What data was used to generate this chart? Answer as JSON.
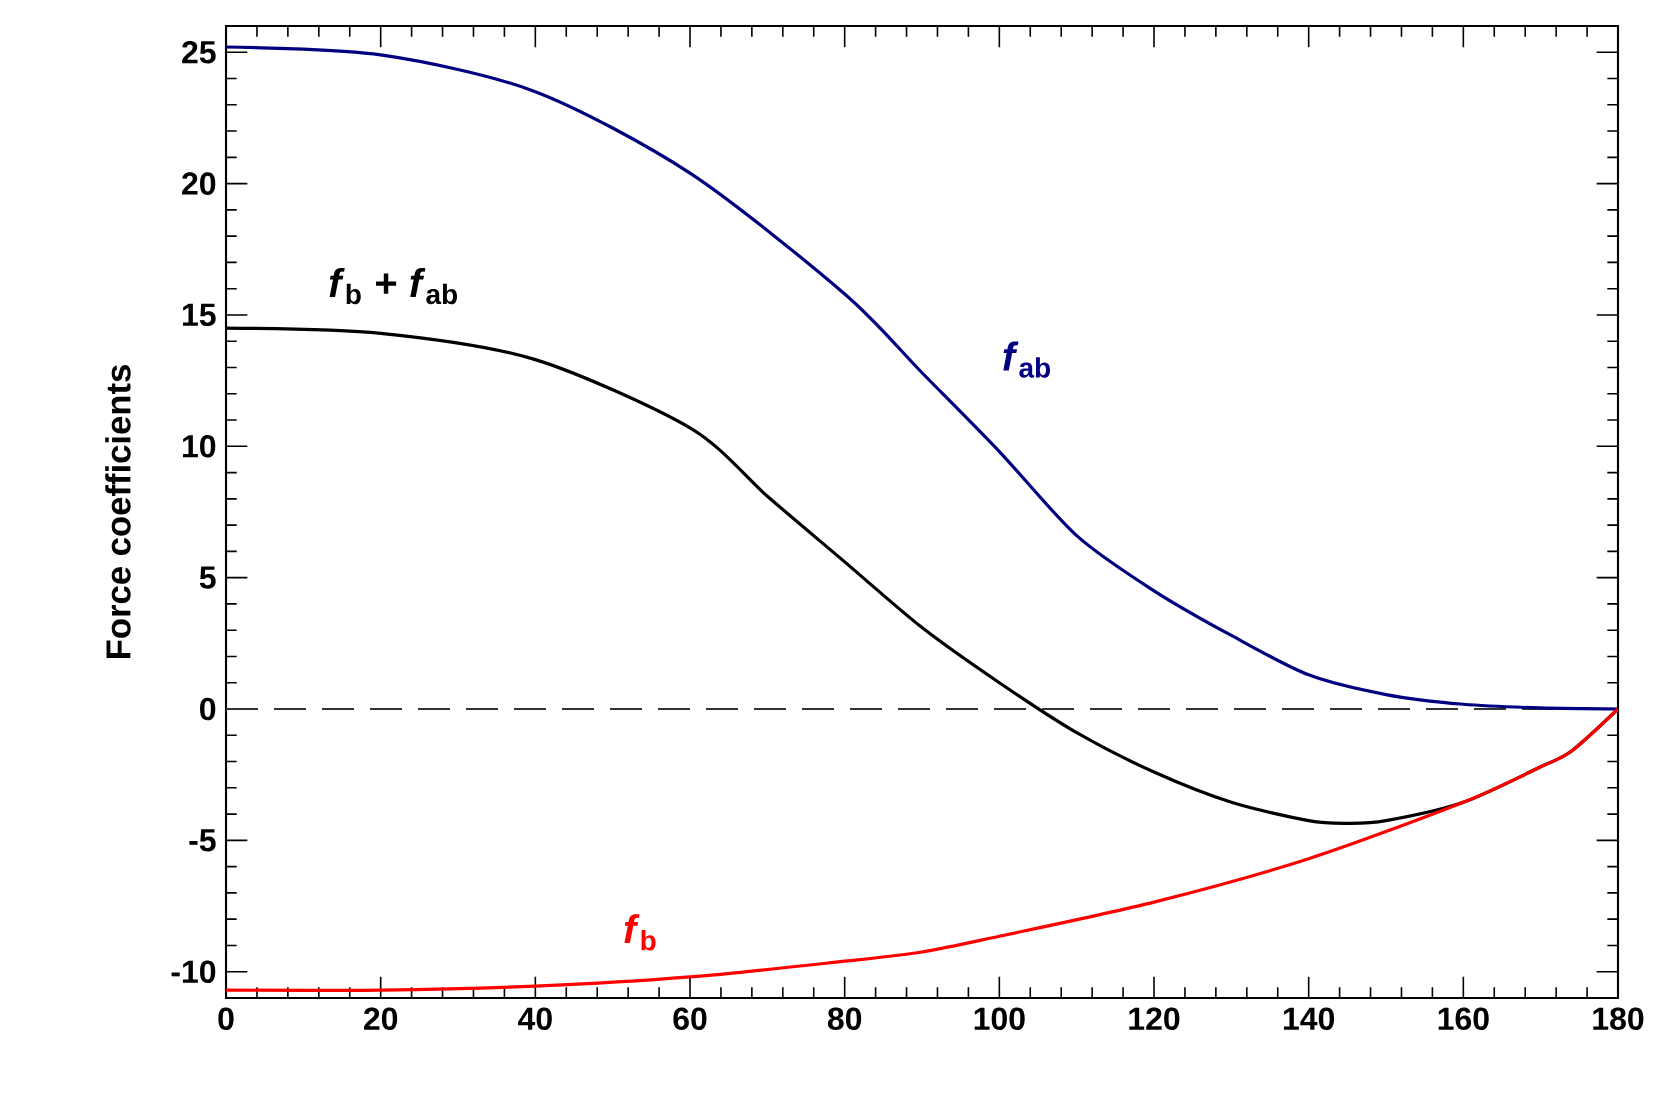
{
  "chart_data": {
    "type": "line",
    "ylabel": "Force coefficients",
    "xlim": [
      0,
      180
    ],
    "ylim": [
      -11,
      26
    ],
    "xticks": [
      0,
      20,
      40,
      60,
      80,
      100,
      120,
      140,
      160,
      180
    ],
    "yticks": [
      -10,
      -5,
      0,
      5,
      10,
      15,
      20,
      25
    ],
    "grid": false,
    "marker": "none",
    "line_style": "solid",
    "ref_lines": [
      {
        "axis": "y",
        "value": 0,
        "color": "#333333",
        "line_style": "dashed"
      }
    ],
    "series": [
      {
        "name": "*f*$_{ab}$",
        "color": "#000080",
        "x": [
          0,
          20,
          40,
          60,
          80,
          90,
          100,
          110,
          120,
          130,
          140,
          150,
          160,
          170,
          180
        ],
        "values": [
          25.2,
          24.9,
          23.5,
          20.4,
          15.8,
          12.8,
          9.8,
          6.6,
          4.5,
          2.8,
          1.3,
          0.55,
          0.18,
          0.04,
          0
        ]
      },
      {
        "name": "*f*$_{b}$ + *f*$_{ab}$",
        "color": "#000000",
        "x": [
          0,
          20,
          40,
          60,
          70,
          80,
          90,
          100,
          110,
          120,
          130,
          140,
          145,
          150,
          160,
          170,
          174,
          180
        ],
        "values": [
          14.5,
          14.3,
          13.3,
          10.7,
          8.1,
          5.6,
          3.1,
          1.0,
          -0.9,
          -2.4,
          -3.55,
          -4.25,
          -4.35,
          -4.25,
          -3.55,
          -2.2,
          -1.6,
          0
        ]
      },
      {
        "name": "*f*$_{b}$",
        "color": "#ff0000",
        "x": [
          0,
          20,
          40,
          60,
          80,
          90,
          100,
          120,
          140,
          160,
          170,
          174,
          180
        ],
        "values": [
          -10.7,
          -10.7,
          -10.55,
          -10.2,
          -9.6,
          -9.25,
          -8.65,
          -7.35,
          -5.7,
          -3.55,
          -2.2,
          -1.6,
          0
        ]
      }
    ]
  }
}
